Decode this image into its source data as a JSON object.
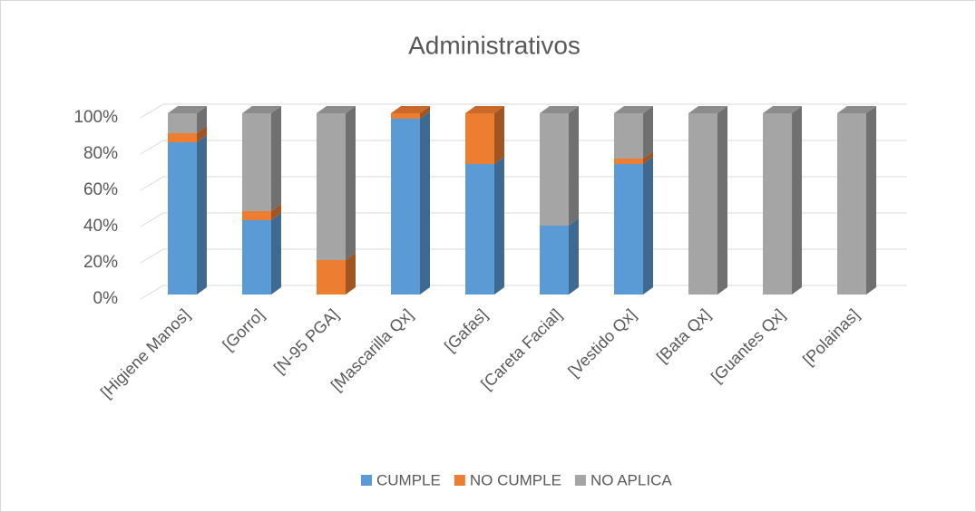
{
  "chart_data": {
    "type": "bar",
    "title": "Administrativos",
    "categories": [
      "[Higiene Manos]",
      "[Gorro]",
      "[N-95 PGA]",
      "[Mascarilla Qx]",
      "[Gafas]",
      "[Careta Facial]",
      "[Vestido Qx]",
      "[Bata Qx]",
      "[Guantes Qx]",
      "[Polainas]"
    ],
    "series": [
      {
        "name": "CUMPLE",
        "color": "#5b9bd5",
        "values": [
          84,
          41,
          0,
          97,
          72,
          38,
          72,
          0,
          0,
          0
        ]
      },
      {
        "name": "NO CUMPLE",
        "color": "#ed7d31",
        "values": [
          5,
          5,
          19,
          3,
          28,
          0,
          3,
          0,
          0,
          0
        ]
      },
      {
        "name": "NO APLICA",
        "color": "#a5a5a5",
        "values": [
          11,
          54,
          81,
          0,
          0,
          62,
          25,
          100,
          100,
          100
        ]
      }
    ],
    "stacked": true,
    "ylim": [
      0,
      100
    ],
    "yticks": [
      {
        "value": 0,
        "label": "0%"
      },
      {
        "value": 20,
        "label": "20%"
      },
      {
        "value": 40,
        "label": "40%"
      },
      {
        "value": 60,
        "label": "60%"
      },
      {
        "value": 80,
        "label": "80%"
      },
      {
        "value": 100,
        "label": "100%"
      }
    ],
    "grid": true,
    "legend": "bottom"
  }
}
